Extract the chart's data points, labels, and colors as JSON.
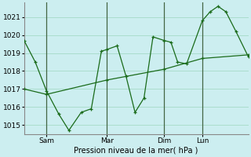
{
  "xlabel": "Pression niveau de la mer( hPa )",
  "background_color": "#cceef0",
  "grid_color": "#aaddcc",
  "line_color": "#1a6b1a",
  "vline_color": "#446644",
  "ylim": [
    1014.5,
    1021.8
  ],
  "yticks": [
    1015,
    1016,
    1017,
    1018,
    1019,
    1020,
    1021
  ],
  "xtick_labels": [
    "Sam",
    "Mar",
    "Dim",
    "Lun"
  ],
  "xtick_positions": [
    0.1,
    0.37,
    0.625,
    0.795
  ],
  "vline_positions": [
    0.1,
    0.37,
    0.625,
    0.795
  ],
  "series1_x": [
    0.0,
    0.05,
    0.1,
    0.155,
    0.2,
    0.255,
    0.3,
    0.345,
    0.37,
    0.415,
    0.455,
    0.495,
    0.535,
    0.575,
    0.625,
    0.655,
    0.685,
    0.725,
    0.795,
    0.83,
    0.865,
    0.9,
    0.945,
    1.0
  ],
  "series1_y": [
    1019.7,
    1018.5,
    1016.9,
    1015.6,
    1014.7,
    1015.7,
    1015.9,
    1019.1,
    1019.2,
    1019.4,
    1017.7,
    1015.7,
    1016.5,
    1019.9,
    1019.7,
    1019.6,
    1018.5,
    1018.4,
    1020.8,
    1021.3,
    1021.6,
    1021.3,
    1020.2,
    1018.8
  ],
  "series2_x": [
    0.0,
    0.1,
    0.37,
    0.625,
    0.795,
    1.0
  ],
  "series2_y": [
    1017.0,
    1016.7,
    1017.5,
    1018.1,
    1018.7,
    1018.9
  ]
}
